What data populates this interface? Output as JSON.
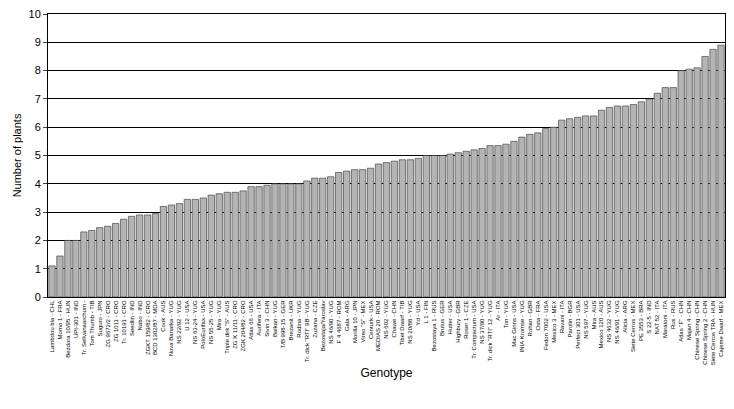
{
  "chart_data": {
    "type": "bar",
    "x_label": "Genotype",
    "y_label": "Number of plants",
    "categories": [
      "Lambdou bla - CHL",
      "Momo 1 - FRA",
      "Bezdora 10/95 - HUN",
      "UPI-301 - IND",
      "Tr. Sellvanaarchum -",
      "Tom Thumb - TIB",
      "Suguro - JPN",
      "ZG 9672/2 - CRO",
      "ZG 1011 - CRO",
      "Tr. 10191 - CRO",
      "Seedlin - IND",
      "Nabo - IND",
      "ZGKT 159/82 - CRO",
      "BCD 1302/87 - MDA",
      "Cook - AUS",
      "Nova Banatka - YUG",
      "NS 22/92 - YUG",
      "U 12 - USA",
      "NS 63-24 - YUG",
      "PoloEurifax - USA",
      "NS 55-25 - YUG",
      "Mira - YUG",
      "Triple dirk \"S\" - AUS",
      "ZG K 11/11 - CRO",
      "ZGK 204/82 - CRO",
      "Atlas 66 - USA",
      "Aurifera - ITA",
      "Sivin 3 - CHN",
      "Balkan - YUG",
      "T/B 998-15 - GER",
      "Brezanit - UKR",
      "Rodina - YUG",
      "Tr. dick \"RTI\" 9B - YUG",
      "Zuzana - CZE",
      "Bezostaja/Yaroslav",
      "NS 46/90 - YUG",
      "F 4 4687 - ROM",
      "Gala - ARG",
      "Morilla 10 - JPN",
      "Vireo \"S\" - MEX",
      "Centurk - USA",
      "MEDIAS 20 - ROM",
      "NS 602 - YUG",
      "Chawe - CHN",
      "Tibet Dwarf - TIB",
      "NS 20/88 - YUG",
      "Yd - USA",
      "L 1 - FIN",
      "Bezostaya 1 - RUS",
      "Brutus - GER",
      "Hutter - USA",
      "Highbury - GBR",
      "Roser 1 - CZE",
      "Tr. Compactum - USA",
      "NS 37/90 - YUG",
      "Tr. dick \"RTI\" 12 - YUG",
      "Ar - ITA",
      "Ton - YUG",
      "Mac Ginns - USA",
      "INIA Kromse - YUG",
      "Rohan - GBR",
      "Osta - FRA",
      "Fedon 7002 - USA",
      "Mexico 3 - MEX",
      "Ravani - ITA",
      "Parolin - BGR",
      "Perfect 301 - USA",
      "NS 597 - YUG",
      "Mira - AUS",
      "Mexico 120 - AUS",
      "NS 4632 - YUG",
      "NS 46/91 - YUG",
      "Alicia - ARG",
      "Siete Cerros - MEX",
      "PE 3553 - BRA",
      "S 22-5 - IND",
      "NAT 52 - ITA",
      "Maratoni - ITA",
      "Rus - RUS",
      "Atlas \"F\" - CHN",
      "Majan 4 - CHN",
      "Chinese Spring - CHN",
      "Chinese Spring 2 - CHN",
      "Siete Cerros TRA - HUN",
      "Cajeme Dwarf - MEX"
    ],
    "values": [
      1.1,
      1.45,
      2.0,
      2.0,
      2.3,
      2.35,
      2.45,
      2.5,
      2.6,
      2.75,
      2.85,
      2.9,
      2.9,
      2.95,
      3.2,
      3.25,
      3.3,
      3.45,
      3.45,
      3.5,
      3.6,
      3.65,
      3.7,
      3.7,
      3.75,
      3.9,
      3.9,
      3.95,
      4.0,
      4.0,
      4.0,
      4.0,
      4.1,
      4.2,
      4.2,
      4.25,
      4.4,
      4.45,
      4.5,
      4.5,
      4.55,
      4.7,
      4.75,
      4.8,
      4.85,
      4.85,
      4.9,
      5.0,
      5.0,
      5.0,
      5.05,
      5.1,
      5.15,
      5.2,
      5.25,
      5.35,
      5.35,
      5.4,
      5.5,
      5.65,
      5.75,
      5.8,
      5.95,
      6.0,
      6.25,
      6.3,
      6.35,
      6.4,
      6.4,
      6.6,
      6.7,
      6.75,
      6.75,
      6.8,
      6.9,
      7.0,
      7.2,
      7.4,
      7.4,
      8.0,
      8.05,
      8.1,
      8.5,
      8.75,
      8.9
    ],
    "color": "#b4b4b4",
    "ylim": [
      0,
      10
    ],
    "yticks": [
      0,
      1,
      2,
      3,
      4,
      5,
      6,
      7,
      8,
      9,
      10
    ],
    "grid": true
  }
}
